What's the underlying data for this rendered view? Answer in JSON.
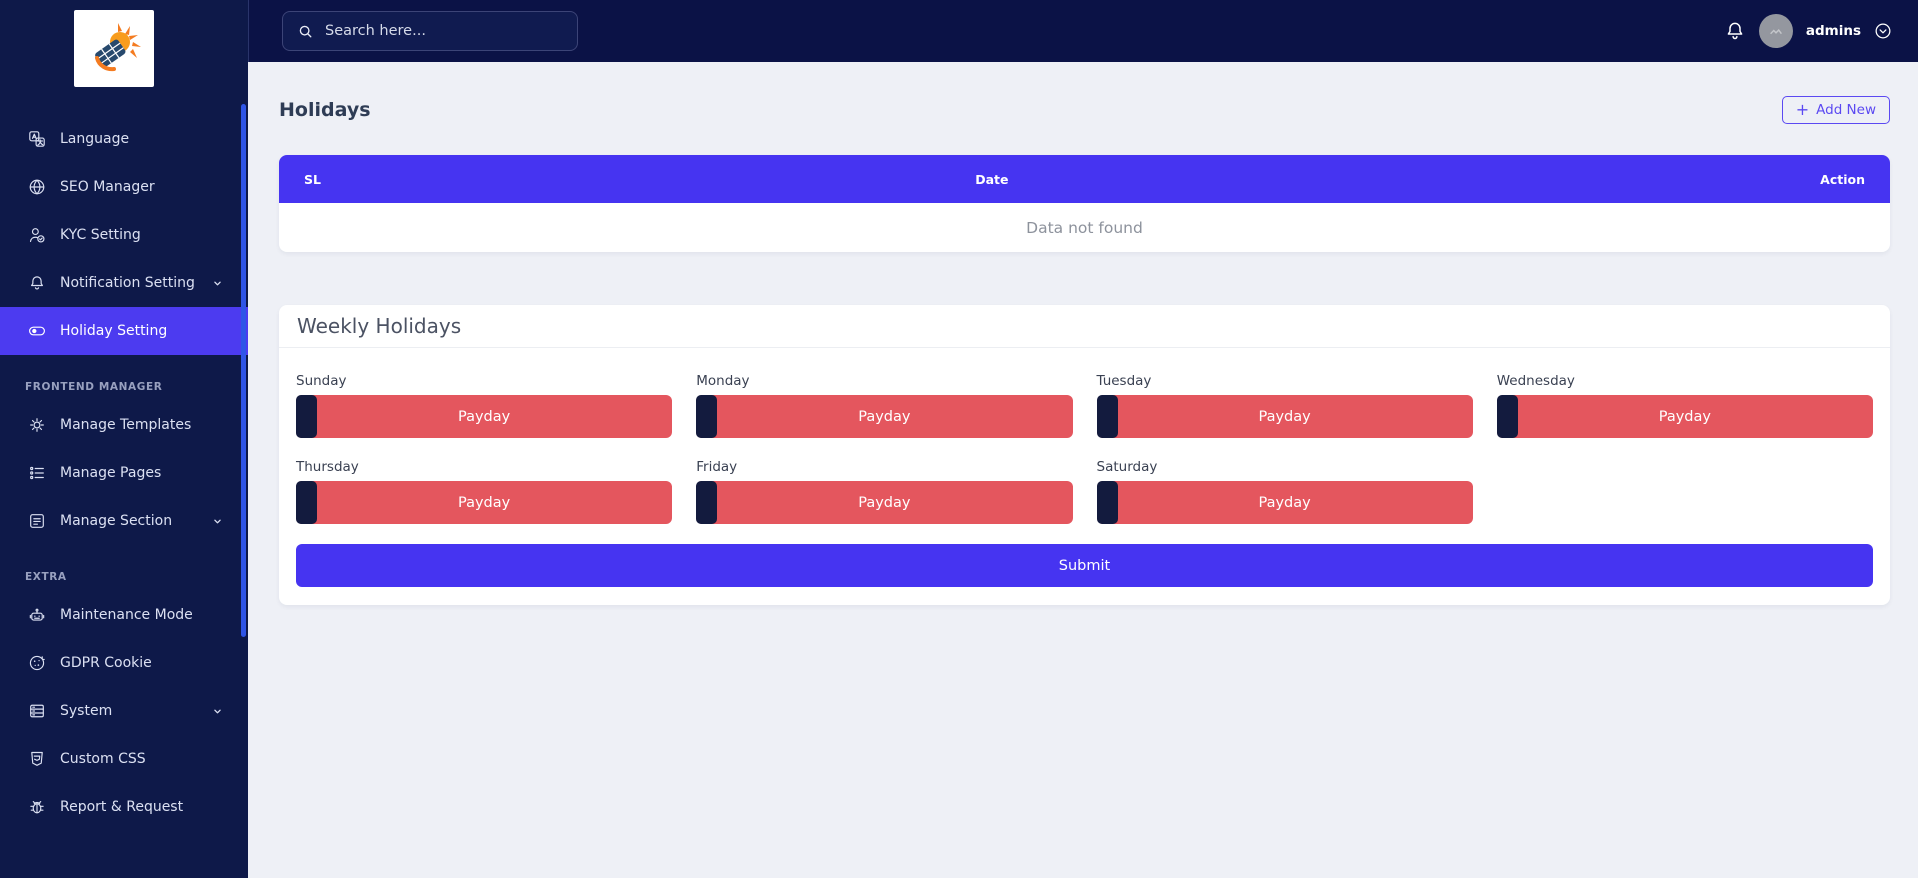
{
  "colors": {
    "accent": "#4634f1",
    "accent_light": "#4c3bf0",
    "danger": "#e4565e",
    "sidebar_navy": "#0e1949",
    "topbar_navy": "#0b1246",
    "toggle_dark": "#131b3e",
    "scrollbar_blue": "#2f55e7"
  },
  "topbar": {
    "search_placeholder": "Search here...",
    "username": "admins"
  },
  "sidebar": {
    "sections": [
      {
        "label": "",
        "items": [
          {
            "label": "Language",
            "icon": "translate-icon"
          },
          {
            "label": "SEO Manager",
            "icon": "globe-icon"
          },
          {
            "label": "KYC Setting",
            "icon": "user-check-icon"
          },
          {
            "label": "Notification Setting",
            "icon": "bell-icon",
            "expandable": true
          },
          {
            "label": "Holiday Setting",
            "icon": "toggle-icon",
            "active": true
          }
        ]
      },
      {
        "label": "FRONTEND MANAGER",
        "items": [
          {
            "label": "Manage Templates",
            "icon": "cog-icon"
          },
          {
            "label": "Manage Pages",
            "icon": "list-icon"
          },
          {
            "label": "Manage Section",
            "icon": "section-icon",
            "expandable": true
          }
        ]
      },
      {
        "label": "EXTRA",
        "items": [
          {
            "label": "Maintenance Mode",
            "icon": "robot-icon"
          },
          {
            "label": "GDPR Cookie",
            "icon": "cookie-icon"
          },
          {
            "label": "System",
            "icon": "system-icon",
            "expandable": true
          },
          {
            "label": "Custom CSS",
            "icon": "css-icon"
          },
          {
            "label": "Report & Request",
            "icon": "bug-icon"
          }
        ]
      }
    ]
  },
  "page": {
    "title": "Holidays",
    "add_new_label": "Add New"
  },
  "holidays_table": {
    "headers": [
      "SL",
      "Date",
      "Action"
    ],
    "empty_text": "Data not found"
  },
  "weekly": {
    "title": "Weekly Holidays",
    "days": [
      "Sunday",
      "Monday",
      "Tuesday",
      "Wednesday",
      "Thursday",
      "Friday",
      "Saturday"
    ],
    "button_label": "Payday",
    "submit_label": "Submit"
  }
}
